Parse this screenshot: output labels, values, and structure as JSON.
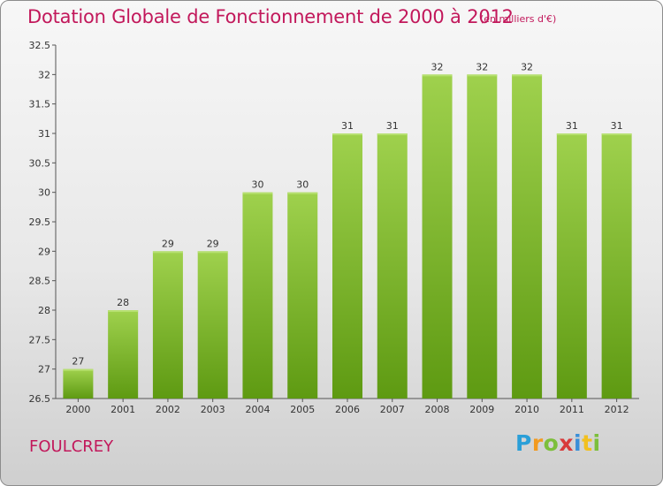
{
  "header": {
    "title": "Dotation Globale de Fonctionnement de 2000 à 2012",
    "subtitle": "(en milliers d'€)"
  },
  "footer": {
    "city": "FOULCREY",
    "logo": "Proxiti"
  },
  "colors": {
    "title": "#c2185b",
    "bar_top": "#9fd14d",
    "bar_bottom": "#5e9a12"
  },
  "chart_data": {
    "type": "bar",
    "title": "Dotation Globale de Fonctionnement de 2000 à 2012",
    "subtitle": "(en milliers d'€)",
    "xlabel": "",
    "ylabel": "",
    "categories": [
      "2000",
      "2001",
      "2002",
      "2003",
      "2004",
      "2005",
      "2006",
      "2007",
      "2008",
      "2009",
      "2010",
      "2011",
      "2012"
    ],
    "values": [
      27,
      28,
      29,
      29,
      30,
      30,
      31,
      31,
      32,
      32,
      32,
      31,
      31
    ],
    "data_labels": [
      "27",
      "28",
      "29",
      "29",
      "30",
      "30",
      "31",
      "31",
      "32",
      "32",
      "32",
      "31",
      "31"
    ],
    "ylim": [
      26.5,
      32.5
    ],
    "yticks": [
      "26.5",
      "27",
      "27.5",
      "28",
      "28.5",
      "29",
      "29.5",
      "30",
      "30.5",
      "31",
      "31.5",
      "32",
      "32.5"
    ],
    "grid": false,
    "legend": "none"
  }
}
